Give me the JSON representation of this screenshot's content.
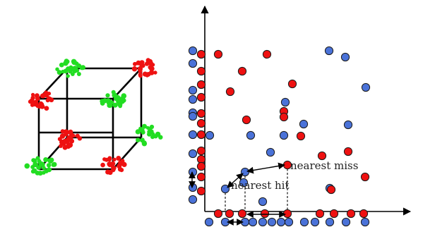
{
  "colors": {
    "red": "#ee1111",
    "blue": "#4a72d8",
    "green": "#22dd22",
    "black": "#000000"
  },
  "labels": {
    "nearest_miss": "nearest miss",
    "nearest_hit": "nearest hit"
  },
  "cube": {
    "red_clusters": 4,
    "green_clusters": 4
  }
}
